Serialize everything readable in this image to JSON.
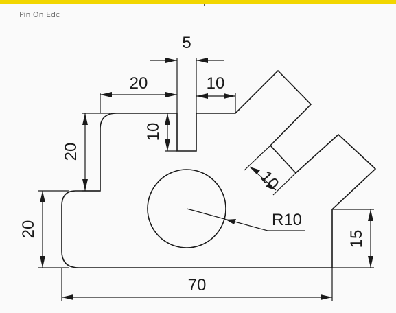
{
  "header": {
    "caption": "Pin On Edc",
    "accent_color": "#f2d600"
  },
  "drawing": {
    "line_color": "#1a1a1a",
    "background": "#fafafa",
    "dimensions": {
      "slot_width": "5",
      "top_left_width": "20",
      "top_right_width": "10",
      "slot_depth": "10",
      "step_height": "20",
      "left_height": "20",
      "notch_width": "10",
      "radius": "R10",
      "right_height": "15",
      "overall_width": "70"
    }
  }
}
